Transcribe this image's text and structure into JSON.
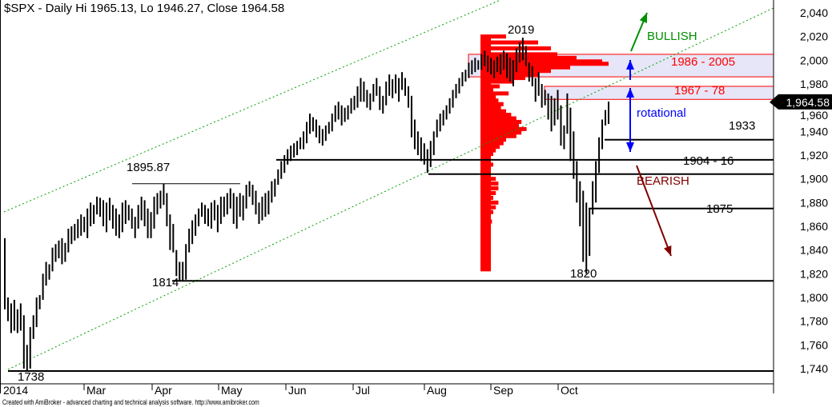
{
  "title": "$SPX - Daily Hi 1965.13, Lo 1946.27, Close 1964.58",
  "footer": "Created with AmiBroker - advanced charting and technical analysis software. http://www.amibroker.com",
  "chart_data": {
    "type": "bar",
    "subtype": "ohlc-hi-lo",
    "ylim": [
      1730,
      2050
    ],
    "y_ticks": [
      2040,
      2020,
      2000,
      1980,
      1960,
      1940,
      1920,
      1900,
      1880,
      1860,
      1840,
      1820,
      1800,
      1780,
      1760,
      1740
    ],
    "y_tick_labels": [
      "2,040",
      "2,020",
      "2,000",
      "1,980",
      "1,960",
      "1,940",
      "1,920",
      "1,900",
      "1,880",
      "1,860",
      "1,840",
      "1,820",
      "1,800",
      "1,780",
      "1,760",
      "1,740"
    ],
    "x_tick_labels": [
      "2014",
      "Mar",
      "Apr",
      "May",
      "Jun",
      "Jul",
      "Aug",
      "Sep",
      "Oct"
    ],
    "grid": false,
    "last_price_label": "1,964.58",
    "colors": {
      "bars": "#000000",
      "profile": "#ff0000",
      "channel": "#00a000",
      "zone_fill": "#e6e6f8",
      "zone_border": "#ff0000",
      "bullish": "#009000",
      "bearish": "#800000",
      "rotational": "#0000ff"
    },
    "bars": [
      [
        1850,
        1790
      ],
      [
        1800,
        1780
      ],
      [
        1795,
        1770
      ],
      [
        1798,
        1772
      ],
      [
        1790,
        1770
      ],
      [
        1795,
        1772
      ],
      [
        1785,
        1740
      ],
      [
        1760,
        1738
      ],
      [
        1775,
        1740
      ],
      [
        1785,
        1765
      ],
      [
        1800,
        1775
      ],
      [
        1802,
        1790
      ],
      [
        1820,
        1798
      ],
      [
        1830,
        1810
      ],
      [
        1828,
        1815
      ],
      [
        1842,
        1822
      ],
      [
        1845,
        1830
      ],
      [
        1848,
        1833
      ],
      [
        1850,
        1828
      ],
      [
        1846,
        1830
      ],
      [
        1858,
        1838
      ],
      [
        1860,
        1845
      ],
      [
        1862,
        1848
      ],
      [
        1866,
        1850
      ],
      [
        1870,
        1852
      ],
      [
        1868,
        1855
      ],
      [
        1875,
        1850
      ],
      [
        1880,
        1860
      ],
      [
        1878,
        1862
      ],
      [
        1885,
        1870
      ],
      [
        1884,
        1868
      ],
      [
        1882,
        1860
      ],
      [
        1880,
        1855
      ],
      [
        1884,
        1865
      ],
      [
        1878,
        1858
      ],
      [
        1875,
        1852
      ],
      [
        1870,
        1850
      ],
      [
        1880,
        1855
      ],
      [
        1882,
        1862
      ],
      [
        1878,
        1865
      ],
      [
        1875,
        1858
      ],
      [
        1868,
        1850
      ],
      [
        1878,
        1858
      ],
      [
        1885,
        1865
      ],
      [
        1882,
        1860
      ],
      [
        1875,
        1850
      ],
      [
        1872,
        1850
      ],
      [
        1885,
        1858
      ],
      [
        1888,
        1870
      ],
      [
        1890,
        1875
      ],
      [
        1895.87,
        1878
      ],
      [
        1888,
        1860
      ],
      [
        1870,
        1840
      ],
      [
        1862,
        1838
      ],
      [
        1840,
        1818
      ],
      [
        1830,
        1814
      ],
      [
        1830,
        1814
      ],
      [
        1845,
        1815
      ],
      [
        1858,
        1838
      ],
      [
        1865,
        1845
      ],
      [
        1870,
        1852
      ],
      [
        1875,
        1860
      ],
      [
        1880,
        1868
      ],
      [
        1878,
        1862
      ],
      [
        1875,
        1860
      ],
      [
        1880,
        1858
      ],
      [
        1882,
        1865
      ],
      [
        1878,
        1855
      ],
      [
        1885,
        1862
      ],
      [
        1885,
        1868
      ],
      [
        1888,
        1870
      ],
      [
        1892,
        1875
      ],
      [
        1888,
        1862
      ],
      [
        1885,
        1858
      ],
      [
        1888,
        1868
      ],
      [
        1886,
        1865
      ],
      [
        1895,
        1875
      ],
      [
        1898,
        1885
      ],
      [
        1895,
        1878
      ],
      [
        1890,
        1870
      ],
      [
        1880,
        1862
      ],
      [
        1885,
        1865
      ],
      [
        1888,
        1868
      ],
      [
        1890,
        1870
      ],
      [
        1898,
        1880
      ],
      [
        1900,
        1885
      ],
      [
        1908,
        1895
      ],
      [
        1915,
        1900
      ],
      [
        1920,
        1905
      ],
      [
        1925,
        1912
      ],
      [
        1928,
        1915
      ],
      [
        1930,
        1918
      ],
      [
        1932,
        1920
      ],
      [
        1935,
        1925
      ],
      [
        1940,
        1925
      ],
      [
        1948,
        1930
      ],
      [
        1955,
        1938
      ],
      [
        1952,
        1940
      ],
      [
        1950,
        1935
      ],
      [
        1945,
        1930
      ],
      [
        1942,
        1928
      ],
      [
        1945,
        1932
      ],
      [
        1948,
        1938
      ],
      [
        1955,
        1940
      ],
      [
        1962,
        1948
      ],
      [
        1965,
        1950
      ],
      [
        1962,
        1945
      ],
      [
        1960,
        1948
      ],
      [
        1962,
        1950
      ],
      [
        1968,
        1955
      ],
      [
        1970,
        1958
      ],
      [
        1978,
        1960
      ],
      [
        1985,
        1965
      ],
      [
        1982,
        1965
      ],
      [
        1975,
        1960
      ],
      [
        1972,
        1958
      ],
      [
        1980,
        1965
      ],
      [
        1985,
        1970
      ],
      [
        1978,
        1958
      ],
      [
        1970,
        1955
      ],
      [
        1982,
        1962
      ],
      [
        1988,
        1970
      ],
      [
        1984,
        1968
      ],
      [
        1988,
        1972
      ],
      [
        1985,
        1965
      ],
      [
        1990,
        1975
      ],
      [
        1985,
        1970
      ],
      [
        1978,
        1960
      ],
      [
        1970,
        1935
      ],
      [
        1950,
        1925
      ],
      [
        1940,
        1920
      ],
      [
        1935,
        1915
      ],
      [
        1930,
        1912
      ],
      [
        1925,
        1905
      ],
      [
        1932,
        1910
      ],
      [
        1940,
        1920
      ],
      [
        1950,
        1935
      ],
      [
        1955,
        1940
      ],
      [
        1958,
        1945
      ],
      [
        1962,
        1950
      ],
      [
        1968,
        1955
      ],
      [
        1975,
        1960
      ],
      [
        1980,
        1968
      ],
      [
        1985,
        1972
      ],
      [
        1990,
        1978
      ],
      [
        1992,
        1982
      ],
      [
        1998,
        1985
      ],
      [
        2000,
        1988
      ],
      [
        2002,
        1990
      ],
      [
        2000,
        1992
      ],
      [
        2005,
        1992
      ],
      [
        2008,
        1995
      ],
      [
        2004,
        1990
      ],
      [
        2002,
        1988
      ],
      [
        2000,
        1985
      ],
      [
        2003,
        1990
      ],
      [
        2005,
        1988
      ],
      [
        2008,
        1992
      ],
      [
        2006,
        1985
      ],
      [
        2002,
        1982
      ],
      [
        2000,
        1978
      ],
      [
        2010,
        1990
      ],
      [
        2015,
        1998
      ],
      [
        2019,
        2000
      ],
      [
        2012,
        1995
      ],
      [
        1998,
        1982
      ],
      [
        1995,
        1978
      ],
      [
        1985,
        1965
      ],
      [
        1990,
        1970
      ],
      [
        1980,
        1960
      ],
      [
        1975,
        1962
      ],
      [
        1972,
        1950
      ],
      [
        1970,
        1940
      ],
      [
        1968,
        1945
      ],
      [
        1975,
        1950
      ],
      [
        1962,
        1928
      ],
      [
        1945,
        1925
      ],
      [
        1972,
        1938
      ],
      [
        1960,
        1915
      ],
      [
        1940,
        1900
      ],
      [
        1915,
        1880
      ],
      [
        1898,
        1860
      ],
      [
        1890,
        1830
      ],
      [
        1880,
        1820
      ],
      [
        1875,
        1835
      ],
      [
        1898,
        1870
      ],
      [
        1915,
        1880
      ],
      [
        1935,
        1905
      ],
      [
        1950,
        1925
      ],
      [
        1958,
        1945
      ],
      [
        1965.13,
        1946.27
      ]
    ],
    "volume_profile": [
      [
        2020,
        0.2
      ],
      [
        2015,
        0.45
      ],
      [
        2010,
        0.55
      ],
      [
        2005,
        0.6
      ],
      [
        2002,
        0.75
      ],
      [
        1999,
        0.95
      ],
      [
        1997,
        1.0
      ],
      [
        1994,
        0.7
      ],
      [
        1991,
        0.55
      ],
      [
        1988,
        0.45
      ],
      [
        1985,
        0.35
      ],
      [
        1982,
        0.25
      ],
      [
        1978,
        0.15
      ],
      [
        1975,
        0.1
      ],
      [
        1972,
        0.22
      ],
      [
        1969,
        0.12
      ],
      [
        1966,
        0.14
      ],
      [
        1963,
        0.18
      ],
      [
        1960,
        0.16
      ],
      [
        1957,
        0.2
      ],
      [
        1954,
        0.24
      ],
      [
        1951,
        0.28
      ],
      [
        1948,
        0.32
      ],
      [
        1945,
        0.3
      ],
      [
        1942,
        0.36
      ],
      [
        1939,
        0.32
      ],
      [
        1936,
        0.28
      ],
      [
        1933,
        0.2
      ],
      [
        1930,
        0.18
      ],
      [
        1927,
        0.15
      ],
      [
        1924,
        0.12
      ],
      [
        1921,
        0.1
      ],
      [
        1918,
        0.08
      ],
      [
        1915,
        0.06
      ],
      [
        1912,
        0.1
      ],
      [
        1909,
        0.06
      ],
      [
        1906,
        0.06
      ],
      [
        1903,
        0.08
      ],
      [
        1900,
        0.12
      ],
      [
        1896,
        0.14
      ],
      [
        1892,
        0.14
      ],
      [
        1888,
        0.12
      ],
      [
        1884,
        0.1
      ],
      [
        1880,
        0.14
      ],
      [
        1876,
        0.12
      ],
      [
        1872,
        0.1
      ],
      [
        1868,
        0.08
      ],
      [
        1864,
        0.09
      ],
      [
        1860,
        0.08
      ],
      [
        1856,
        0.07
      ],
      [
        1852,
        0.06
      ],
      [
        1848,
        0.05
      ],
      [
        1844,
        0.05
      ],
      [
        1840,
        0.04
      ],
      [
        1836,
        0.04
      ],
      [
        1832,
        0.03
      ],
      [
        1828,
        0.03
      ],
      [
        1824,
        0.02
      ]
    ],
    "levels": [
      {
        "price": 1933,
        "label": "1933"
      },
      {
        "price": 1916,
        "label": ""
      },
      {
        "price": 1904,
        "label": "1904 - 16"
      },
      {
        "price": 1875,
        "label": "1875"
      },
      {
        "price": 1814,
        "label": "1814"
      },
      {
        "price": 1738,
        "label": "1738"
      },
      {
        "price": 1895.87,
        "label": "1895.87"
      }
    ],
    "zones": [
      {
        "from": 1986,
        "to": 2005,
        "label": "1986 - 2005"
      },
      {
        "from": 1967,
        "to": 1978,
        "label": "1967 - 78"
      }
    ],
    "annotations": {
      "high_label": "2019",
      "low_label": "1820",
      "bullish": "BULLISH",
      "bearish": "BEARISH",
      "rotational": "rotational"
    }
  }
}
